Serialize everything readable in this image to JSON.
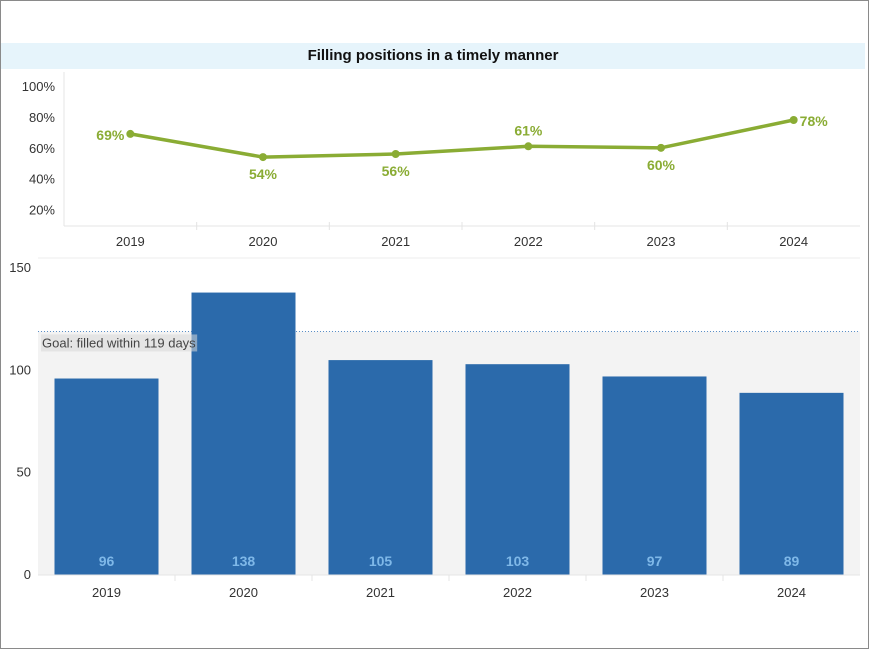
{
  "colors": {
    "line": "#8aac34",
    "bar": "#2b6aab",
    "bar_label": "#7fb8e8",
    "title_bg": "#e6f4fb",
    "goal_band": "#f3f3f3",
    "goal_line": "#5b8fc7"
  },
  "chart_data": [
    {
      "type": "line",
      "title": "Filling positions in a timely manner",
      "categories": [
        "2019",
        "2020",
        "2021",
        "2022",
        "2023",
        "2024"
      ],
      "values": [
        69,
        54,
        56,
        61,
        60,
        78
      ],
      "value_labels": [
        "69%",
        "54%",
        "56%",
        "61%",
        "60%",
        "78%"
      ],
      "label_positions": [
        "left",
        "below",
        "below",
        "above",
        "below",
        "right"
      ],
      "yticks": [
        "20%",
        "40%",
        "60%",
        "80%",
        "100%"
      ],
      "ytick_values": [
        20,
        40,
        60,
        80,
        100
      ],
      "ylim": [
        12,
        100
      ],
      "grid": false
    },
    {
      "type": "bar",
      "categories": [
        "2019",
        "2020",
        "2021",
        "2022",
        "2023",
        "2024"
      ],
      "values": [
        96,
        138,
        105,
        103,
        97,
        89
      ],
      "value_labels": [
        "96",
        "138",
        "105",
        "103",
        "97",
        "89"
      ],
      "yticks": [
        "0",
        "50",
        "100",
        "150"
      ],
      "ytick_values": [
        0,
        50,
        100,
        150
      ],
      "ylim": [
        0,
        150
      ],
      "goal": {
        "label": "Goal: filled within 119 days",
        "value": 119
      },
      "grid": false
    }
  ]
}
